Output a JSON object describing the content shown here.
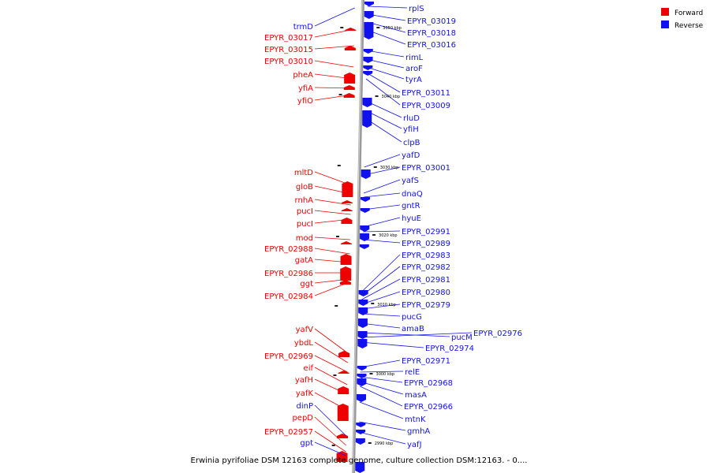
{
  "legend": {
    "forward_label": "Forward",
    "reverse_label": "Reverse",
    "forward_color": "#ee0000",
    "reverse_color": "#1111ee"
  },
  "caption": "Erwinia pyrifoliae DSM 12163 complete genome, culture collection DSM:12163. - 0....",
  "ticks": [
    "3050 kbp",
    "3040 kbp",
    "3030 kbp",
    "3020 kbp",
    "3010 kbp",
    "3000 kbp",
    "2990 kbp"
  ],
  "left_labels": [
    {
      "text": "trmD",
      "color": "blue"
    },
    {
      "text": "EPYR_03017",
      "color": "red"
    },
    {
      "text": "EPYR_03015",
      "color": "red"
    },
    {
      "text": "EPYR_03010",
      "color": "red"
    },
    {
      "text": "pheA",
      "color": "red"
    },
    {
      "text": "yfiA",
      "color": "red"
    },
    {
      "text": "yfiO",
      "color": "red"
    },
    {
      "text": "mltD",
      "color": "red"
    },
    {
      "text": "gloB",
      "color": "red"
    },
    {
      "text": "rnhA",
      "color": "red"
    },
    {
      "text": "pucI",
      "color": "red"
    },
    {
      "text": "pucI",
      "color": "red"
    },
    {
      "text": "mod",
      "color": "red"
    },
    {
      "text": "EPYR_02988",
      "color": "red"
    },
    {
      "text": "gatA",
      "color": "red"
    },
    {
      "text": "EPYR_02986",
      "color": "red"
    },
    {
      "text": "ggt",
      "color": "red"
    },
    {
      "text": "EPYR_02984",
      "color": "red"
    },
    {
      "text": "yafV",
      "color": "red"
    },
    {
      "text": "ybdL",
      "color": "red"
    },
    {
      "text": "EPYR_02969",
      "color": "red"
    },
    {
      "text": "eif",
      "color": "red"
    },
    {
      "text": "yafH",
      "color": "red"
    },
    {
      "text": "yafK",
      "color": "red"
    },
    {
      "text": "dinP",
      "color": "blue"
    },
    {
      "text": "pepD",
      "color": "red"
    },
    {
      "text": "EPYR_02957",
      "color": "red"
    },
    {
      "text": "gpt",
      "color": "blue"
    }
  ],
  "right_labels": [
    "rplS",
    "EPYR_03019",
    "EPYR_03018",
    "EPYR_03016",
    "rimL",
    "aroF",
    "tyrA",
    "EPYR_03011",
    "EPYR_03009",
    "rluD",
    "yfiH",
    "clpB",
    "yafD",
    "EPYR_03001",
    "yafS",
    "dnaQ",
    "gntR",
    "hyuE",
    "EPYR_02991",
    "EPYR_02989",
    "EPYR_02983",
    "EPYR_02982",
    "EPYR_02981",
    "EPYR_02980",
    "EPYR_02979",
    "pucG",
    "amaB",
    "pucM",
    "EPYR_02976",
    "EPYR_02974",
    "EPYR_02971",
    "relE",
    "EPYR_02968",
    "masA",
    "EPYR_02966",
    "mtnK",
    "gmhA",
    "yafJ"
  ]
}
